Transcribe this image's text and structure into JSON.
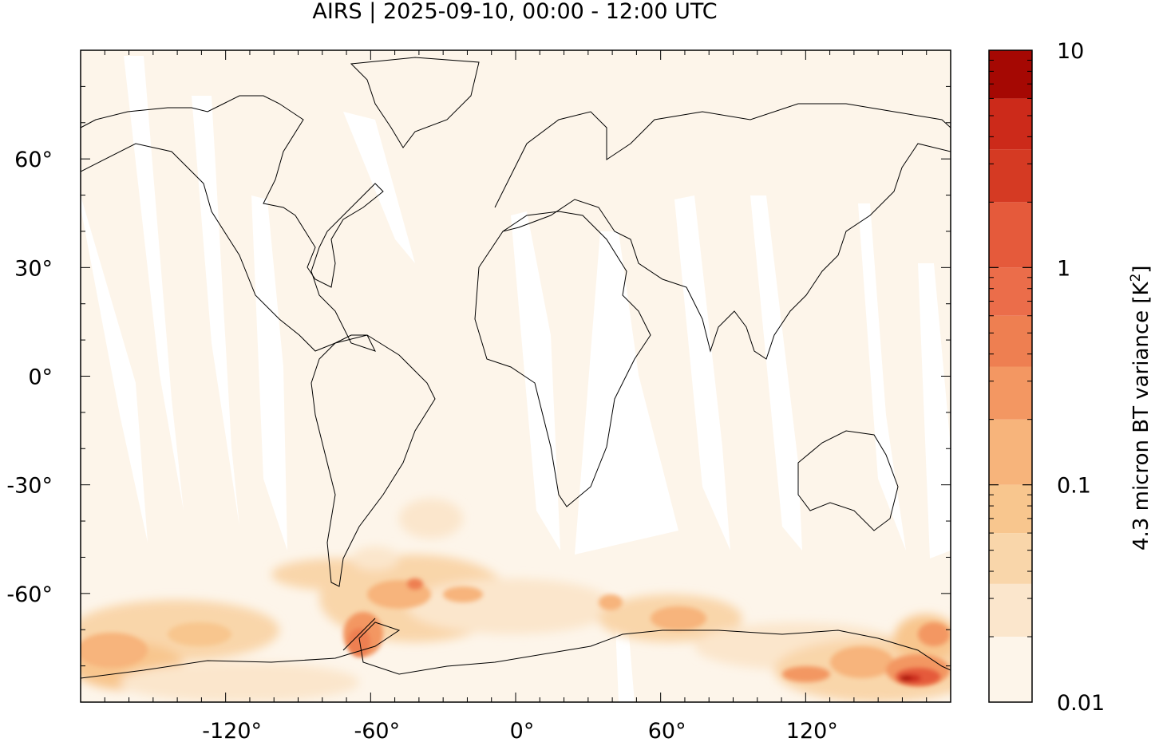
{
  "title": "AIRS | 2025-09-10, 00:00 - 12:00 UTC",
  "map": {
    "projection": "equirectangular",
    "lon_range": [
      -180,
      180
    ],
    "lat_range": [
      -90,
      90
    ],
    "x_ticks": [
      {
        "value": -120,
        "label": "-120°"
      },
      {
        "value": -60,
        "label": "-60°"
      },
      {
        "value": 0,
        "label": "0°"
      },
      {
        "value": 60,
        "label": "60°"
      },
      {
        "value": 120,
        "label": "120°"
      }
    ],
    "y_ticks": [
      {
        "value": 60,
        "label": "60°"
      },
      {
        "value": 30,
        "label": "30°"
      },
      {
        "value": 0,
        "label": "0°"
      },
      {
        "value": -30,
        "label": "-30°"
      },
      {
        "value": -60,
        "label": "-60°"
      }
    ],
    "background_color": "#fdf5ea",
    "no_data_color": "#ffffff",
    "coastline_color": "#000000"
  },
  "colorbar": {
    "label_main": "4.3 micron BT variance [K",
    "label_sup": "2",
    "label_end": "]",
    "scale": "log",
    "range": [
      0.01,
      10
    ],
    "tick_labels": [
      {
        "value": 10,
        "label": "10"
      },
      {
        "value": 1,
        "label": "1"
      },
      {
        "value": 0.1,
        "label": "0.1"
      },
      {
        "value": 0.01,
        "label": "0.01"
      }
    ],
    "levels": [
      {
        "from": 0.01,
        "to": 0.02,
        "color": "#fdf5ea"
      },
      {
        "from": 0.02,
        "to": 0.035,
        "color": "#fbe6cc"
      },
      {
        "from": 0.035,
        "to": 0.06,
        "color": "#f9d6aa"
      },
      {
        "from": 0.06,
        "to": 0.1,
        "color": "#f8c68e"
      },
      {
        "from": 0.1,
        "to": 0.2,
        "color": "#f7b47b"
      },
      {
        "from": 0.2,
        "to": 0.35,
        "color": "#f39762"
      },
      {
        "from": 0.35,
        "to": 0.6,
        "color": "#ee7f51"
      },
      {
        "from": 0.6,
        "to": 1.0,
        "color": "#eb6d4a"
      },
      {
        "from": 1.0,
        "to": 2.0,
        "color": "#e55a3b"
      },
      {
        "from": 2.0,
        "to": 3.5,
        "color": "#d53a23"
      },
      {
        "from": 3.5,
        "to": 6.0,
        "color": "#cc2a1a"
      },
      {
        "from": 6.0,
        "to": 10.0,
        "color": "#a50803"
      }
    ]
  }
}
